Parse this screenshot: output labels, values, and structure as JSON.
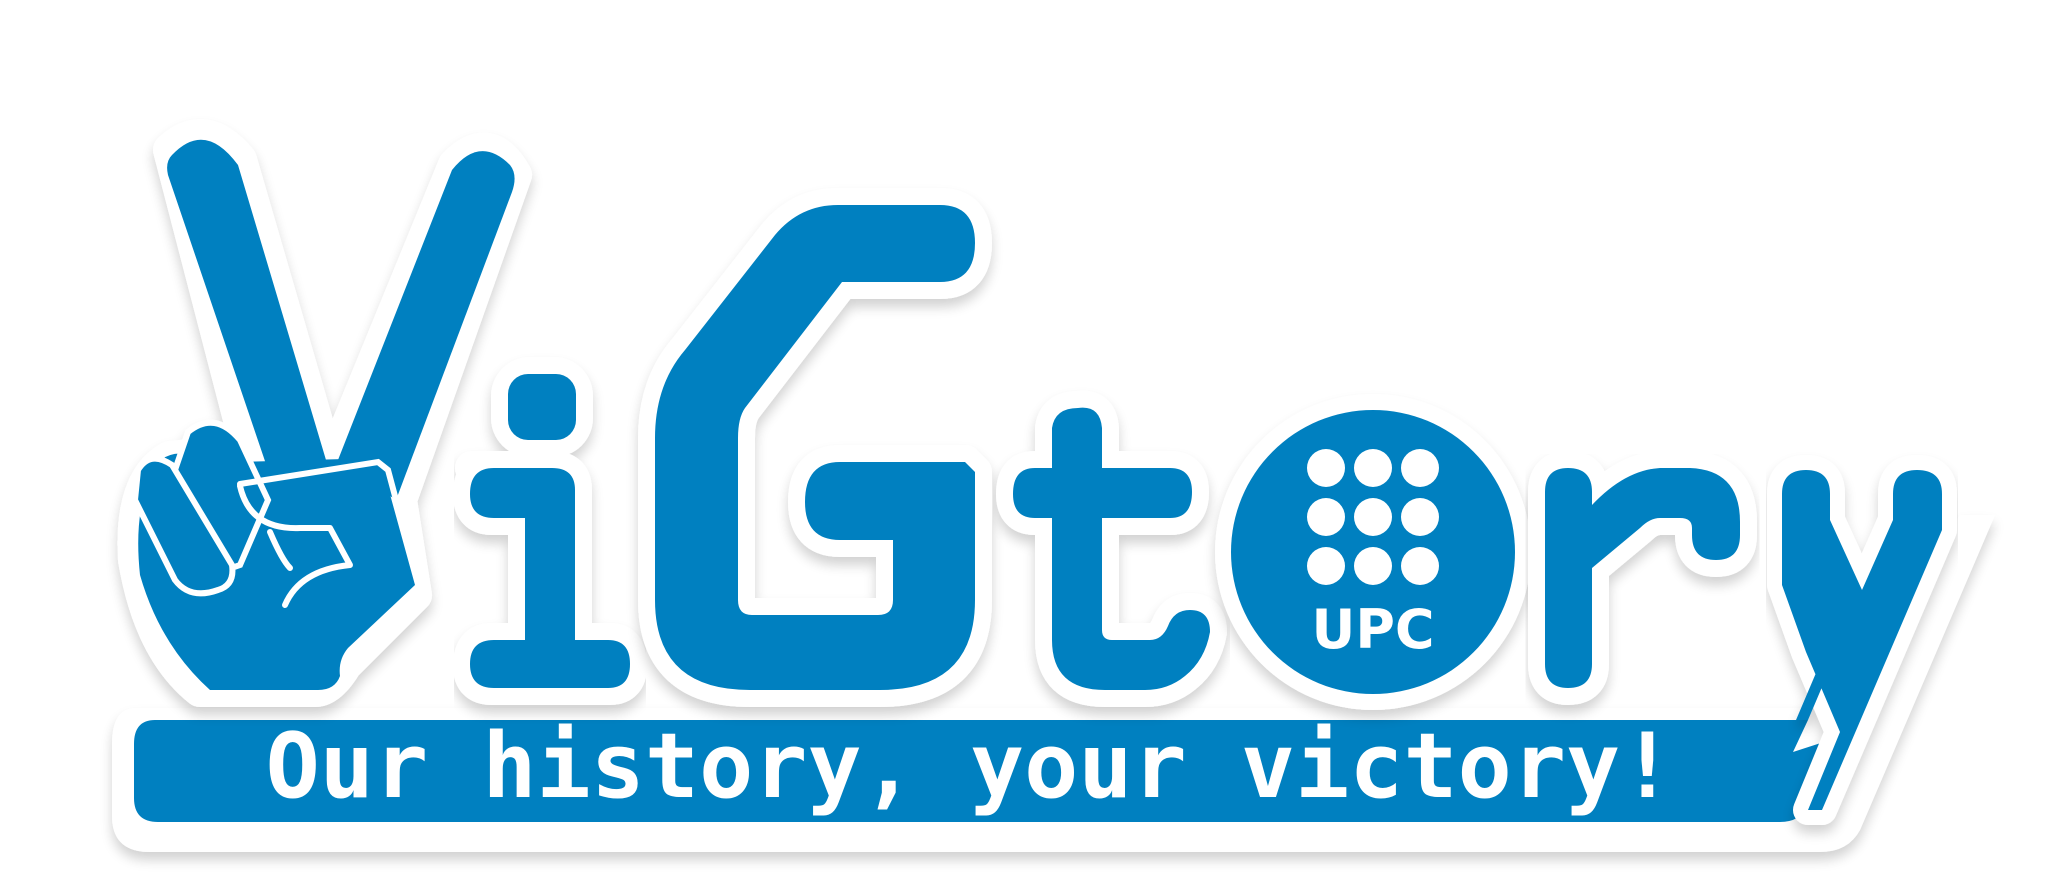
{
  "logo": {
    "wordmark": "ViGtory",
    "tagline": "Our history, your victory!",
    "seal_text": "UPC"
  },
  "colors": {
    "brand_blue": "#0080c0",
    "outline_white": "#ffffff",
    "shadow": "#e8e8e8",
    "background": "#ffffff"
  },
  "icons": {
    "hand": "peace-sign-hand-icon",
    "seal": "upc-university-seal-icon"
  }
}
